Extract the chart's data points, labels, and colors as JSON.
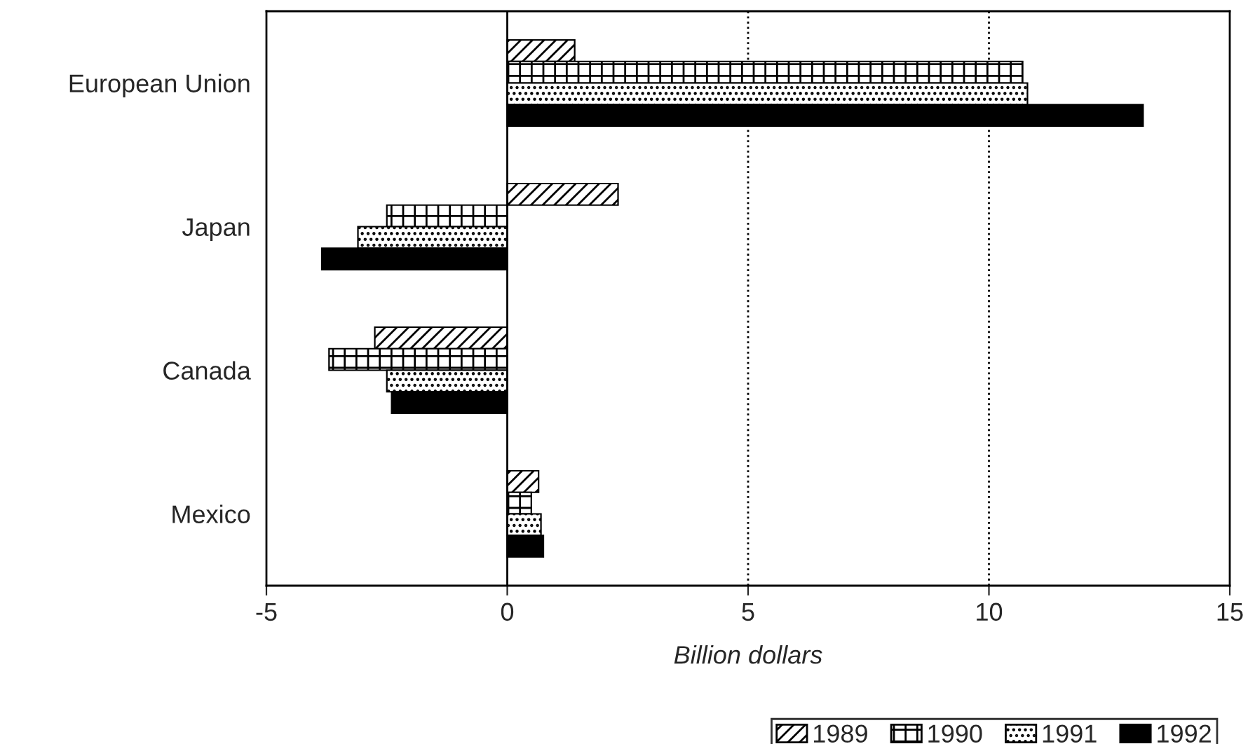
{
  "chart_data": {
    "type": "bar",
    "orientation": "horizontal",
    "xlabel": "Billion dollars",
    "categories": [
      "European Union",
      "Japan",
      "Canada",
      "Mexico"
    ],
    "series": [
      {
        "name": "1989",
        "color": "#000000",
        "values": [
          1.4,
          2.3,
          -2.75,
          0.65
        ]
      },
      {
        "name": "1990",
        "color": "#000000",
        "values": [
          10.7,
          -2.5,
          -3.7,
          0.5
        ]
      },
      {
        "name": "1991",
        "color": "#000000",
        "values": [
          10.8,
          -3.1,
          -2.5,
          0.7
        ]
      },
      {
        "name": "1992",
        "color": "#000000",
        "values": [
          13.2,
          -3.85,
          -2.4,
          0.75
        ]
      }
    ],
    "xlim": [
      -5,
      15
    ],
    "xticks": [
      -5,
      0,
      5,
      10,
      15
    ],
    "ref_lines": [
      {
        "axis": "x",
        "value": 0,
        "color": "#000000",
        "line_style": "solid"
      },
      {
        "axis": "x",
        "value": 5,
        "color": "#000000",
        "line_style": "dotted"
      },
      {
        "axis": "x",
        "value": 10,
        "color": "#000000",
        "line_style": "dotted"
      }
    ],
    "grid": false,
    "legend": "bottom right"
  }
}
